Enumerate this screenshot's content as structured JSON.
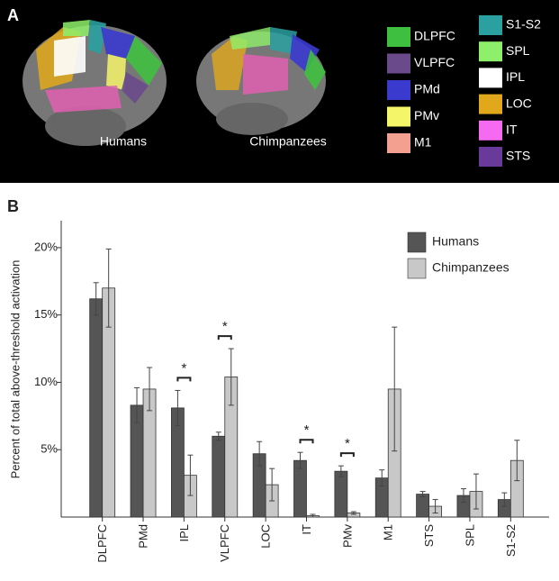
{
  "panels": {
    "a": "A",
    "b": "B"
  },
  "brain": {
    "captions": [
      "Humans",
      "Chimpanzees"
    ],
    "regions": [
      {
        "name": "DLPFC",
        "color": "#3fbf3f"
      },
      {
        "name": "VLPFC",
        "color": "#6a4a8a"
      },
      {
        "name": "PMd",
        "color": "#3a3acf"
      },
      {
        "name": "PMv",
        "color": "#f5f56a"
      },
      {
        "name": "M1",
        "color": "#f4a090"
      },
      {
        "name": "S1-S2",
        "color": "#2aa0a0"
      },
      {
        "name": "SPL",
        "color": "#8ef06a"
      },
      {
        "name": "IPL",
        "color": "#ffffff"
      },
      {
        "name": "LOC",
        "color": "#e0a81a"
      },
      {
        "name": "IT",
        "color": "#f56af0"
      },
      {
        "name": "STS",
        "color": "#6a3a9a"
      }
    ]
  },
  "chart_data": {
    "type": "bar",
    "y_label": "Percent of total above-threshold activation",
    "categories": [
      "DLPFC",
      "PMd",
      "IPL",
      "VLPFC",
      "LOC",
      "IT",
      "PMv",
      "M1",
      "STS",
      "SPL",
      "S1-S2"
    ],
    "series": [
      {
        "name": "Humans",
        "color": "#555555",
        "values": [
          16.2,
          8.3,
          8.1,
          6.0,
          4.7,
          4.2,
          3.4,
          2.9,
          1.7,
          1.6,
          1.3
        ],
        "errors": [
          1.2,
          1.3,
          1.3,
          0.3,
          0.9,
          0.6,
          0.4,
          0.6,
          0.2,
          0.5,
          0.5
        ]
      },
      {
        "name": "Chimpanzees",
        "color": "#c8c8c8",
        "values": [
          17.0,
          9.5,
          3.1,
          10.4,
          2.4,
          0.1,
          0.3,
          9.5,
          0.8,
          1.9,
          4.2
        ],
        "errors": [
          2.9,
          1.6,
          1.5,
          2.1,
          1.2,
          0.1,
          0.1,
          4.6,
          0.5,
          1.3,
          1.5
        ]
      }
    ],
    "annotations": [
      {
        "text": "*",
        "category": "IPL"
      },
      {
        "text": "*",
        "category": "VLPFC"
      },
      {
        "text": "*",
        "category": "IT"
      },
      {
        "text": "*",
        "category": "PMv"
      }
    ],
    "ylim": [
      0,
      22
    ],
    "yticks": [
      {
        "value": 5,
        "label": "5%"
      },
      {
        "value": 10,
        "label": "10%"
      },
      {
        "value": 15,
        "label": "15%"
      },
      {
        "value": 20,
        "label": "20%"
      }
    ],
    "legend": "upper right"
  }
}
